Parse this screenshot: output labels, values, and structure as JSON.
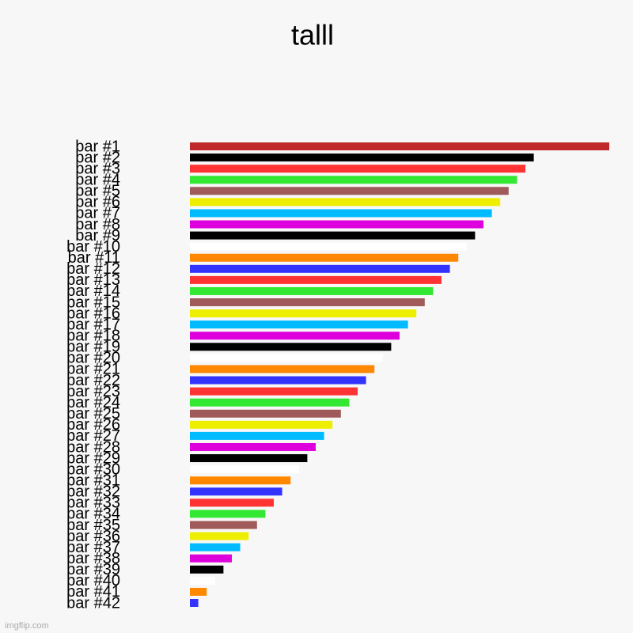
{
  "chart_data": {
    "type": "bar",
    "orientation": "horizontal",
    "title": "talll",
    "categories": [
      "bar #1",
      "bar #2",
      "bar #3",
      "bar #4",
      "bar #5",
      "bar #6",
      "bar #7",
      "bar #8",
      "bar #9",
      "bar #10",
      "bar #11",
      "bar #12",
      "bar #13",
      "bar #14",
      "bar #15",
      "bar #16",
      "bar #17",
      "bar #18",
      "bar #19",
      "bar #20",
      "bar #21",
      "bar #22",
      "bar #23",
      "bar #24",
      "bar #25",
      "bar #26",
      "bar #27",
      "bar #28",
      "bar #29",
      "bar #30",
      "bar #31",
      "bar #32",
      "bar #33",
      "bar #34",
      "bar #35",
      "bar #36",
      "bar #37",
      "bar #38",
      "bar #39",
      "bar #40",
      "bar #41",
      "bar #42"
    ],
    "values": [
      50,
      41,
      40,
      39,
      38,
      37,
      36,
      35,
      34,
      33,
      32,
      31,
      30,
      29,
      28,
      27,
      26,
      25,
      24,
      23,
      22,
      21,
      20,
      19,
      18,
      17,
      16,
      15,
      14,
      13,
      12,
      11,
      10,
      9,
      8,
      7,
      6,
      5,
      4,
      3,
      2,
      1
    ],
    "colors": [
      "#c0282a",
      "#000000",
      "#ff3333",
      "#33e833",
      "#a05a5a",
      "#eeee00",
      "#00bbff",
      "#dd00dd",
      "#000000",
      "#ffffff",
      "#ff8800",
      "#3333ff",
      "#ff3333",
      "#33e833",
      "#a05a5a",
      "#eeee00",
      "#00bbff",
      "#dd00dd",
      "#000000",
      "#ffffff",
      "#ff8800",
      "#3333ff",
      "#ff3333",
      "#33e833",
      "#a05a5a",
      "#eeee00",
      "#00bbff",
      "#dd00dd",
      "#000000",
      "#ffffff",
      "#ff8800",
      "#3333ff",
      "#ff3333",
      "#33e833",
      "#a05a5a",
      "#eeee00",
      "#00bbff",
      "#dd00dd",
      "#000000",
      "#ffffff",
      "#ff8800",
      "#3333ff"
    ],
    "watermark": "imgflip.com"
  }
}
